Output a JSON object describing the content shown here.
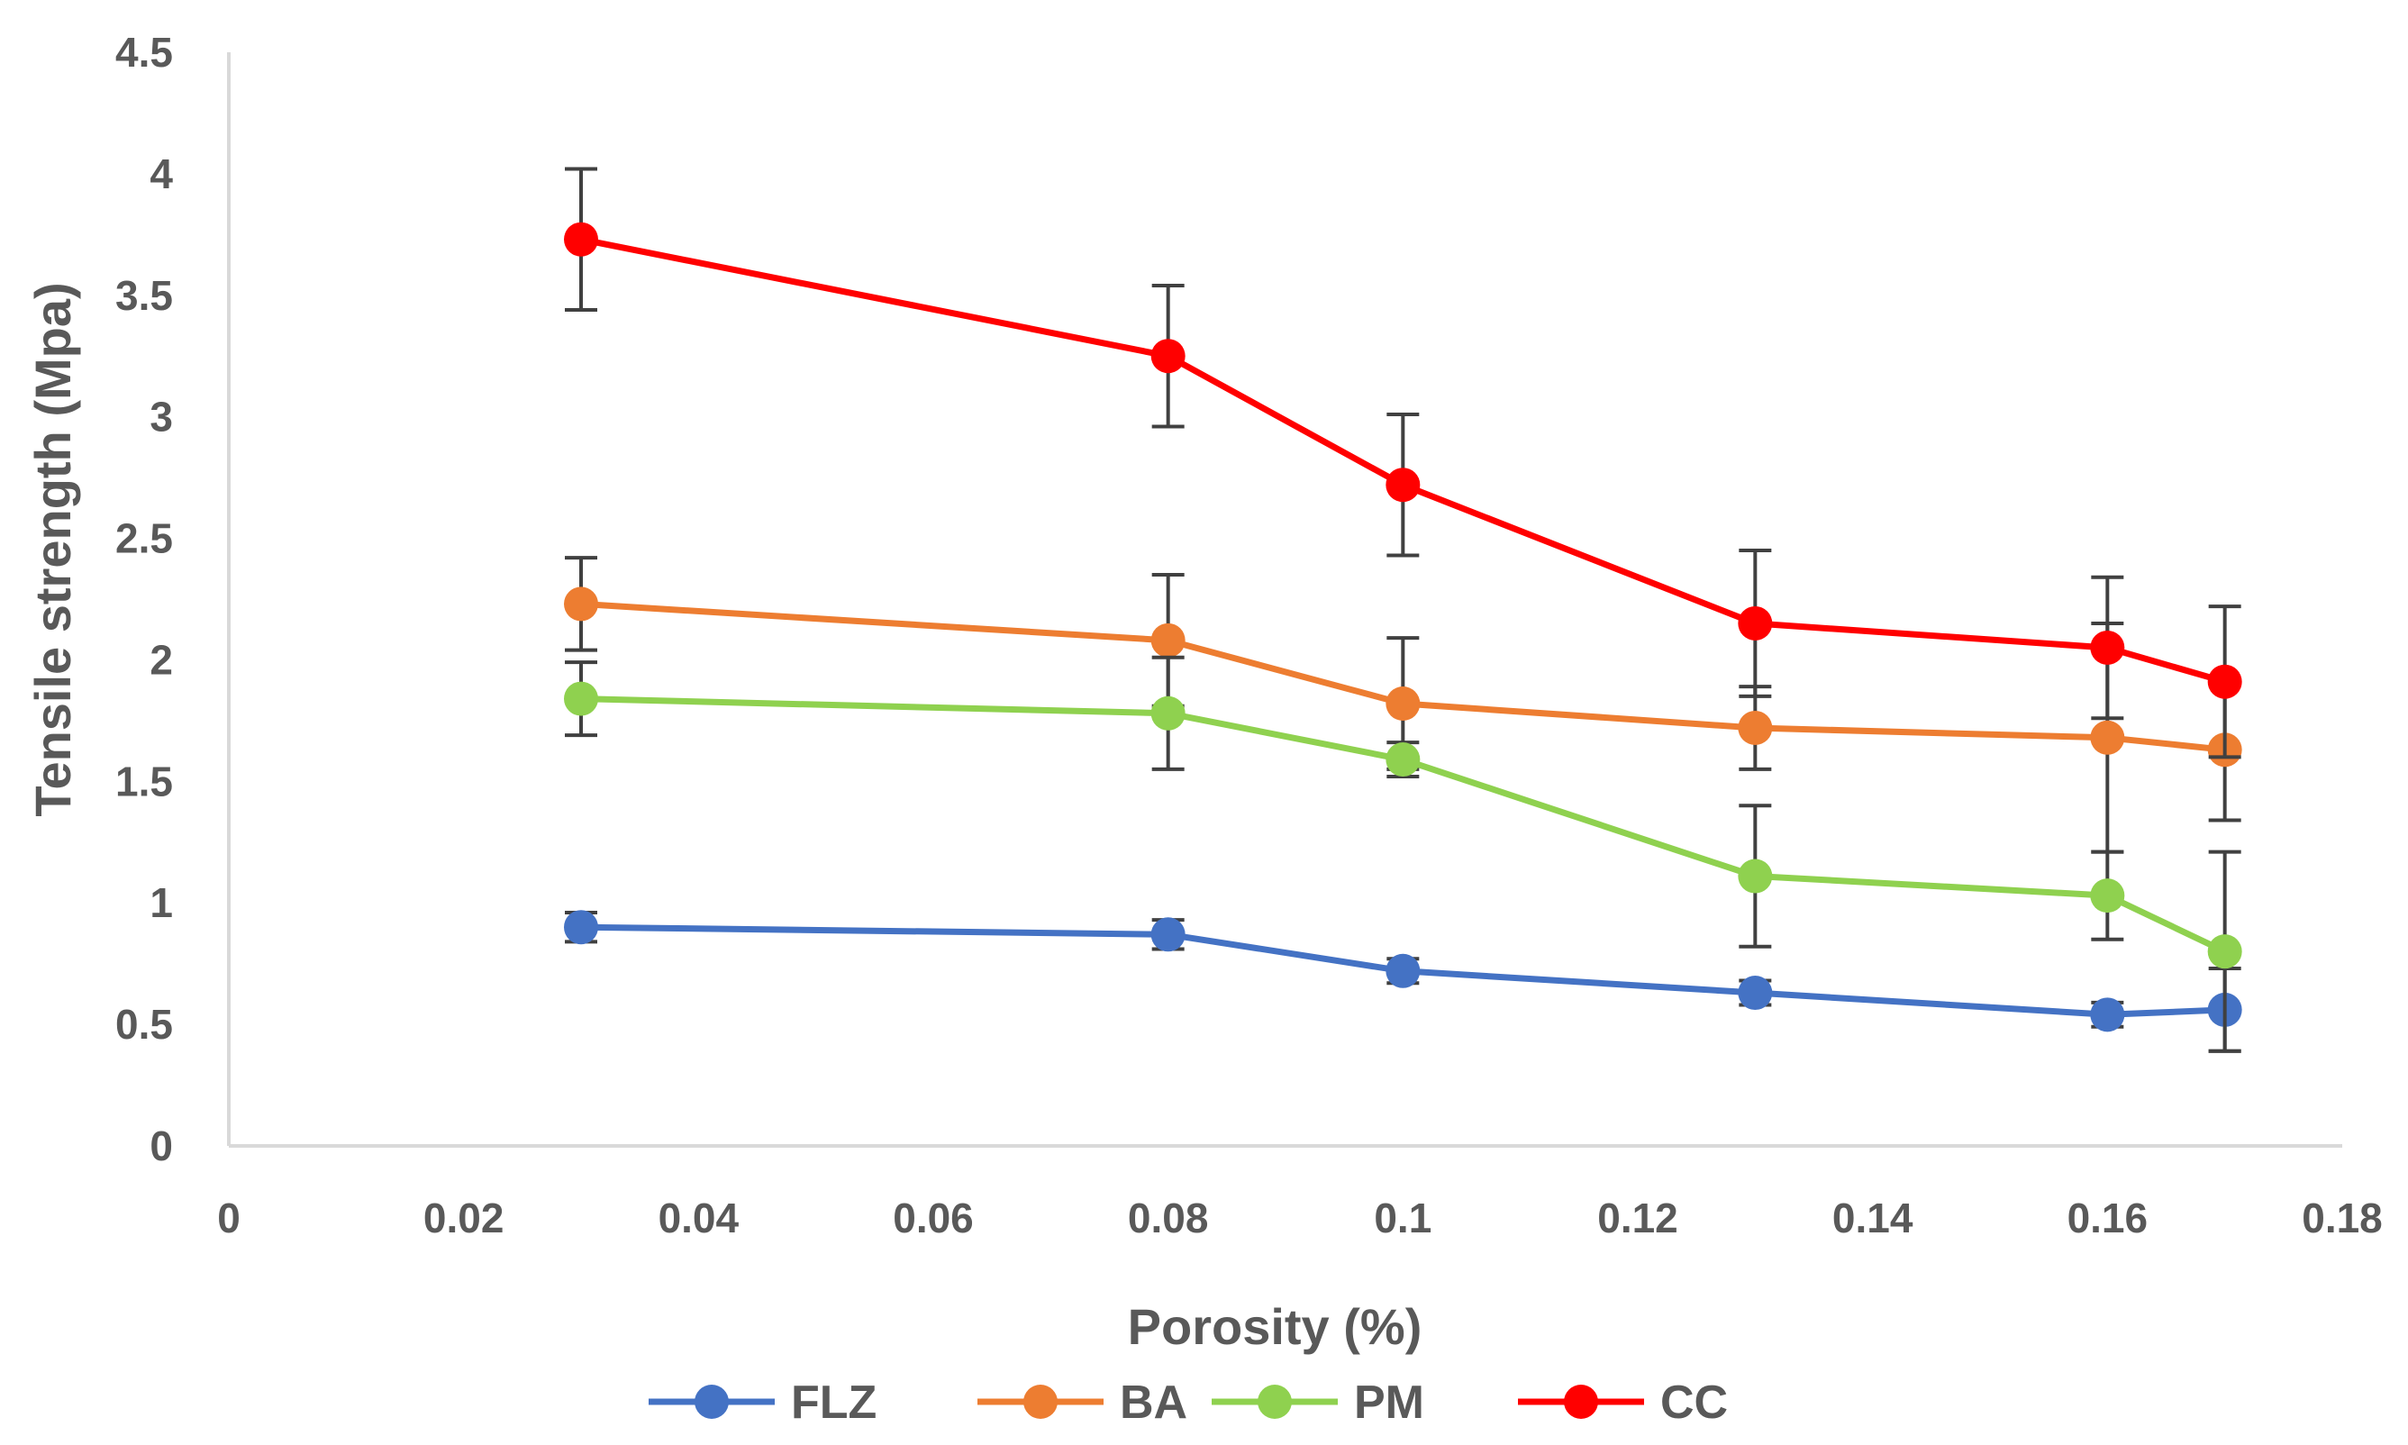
{
  "chart_data": {
    "type": "line",
    "title": "",
    "xlabel": "Porosity (%)",
    "ylabel": "Tensile strength (Mpa)",
    "xlim": [
      0,
      0.18
    ],
    "ylim": [
      0,
      4.5
    ],
    "x_ticks": [
      0,
      0.02,
      0.04,
      0.06,
      0.08,
      0.1,
      0.12,
      0.14,
      0.16,
      0.18
    ],
    "x_tick_labels": [
      "0",
      "0.02",
      "0.04",
      "0.06",
      "0.08",
      "0.1",
      "0.12",
      "0.14",
      "0.16",
      "0.18"
    ],
    "y_ticks": [
      0,
      0.5,
      1,
      1.5,
      2,
      2.5,
      3,
      3.5,
      4,
      4.5
    ],
    "y_tick_labels": [
      "0",
      "0.5",
      "1",
      "1.5",
      "2",
      "2.5",
      "3",
      "3.5",
      "4",
      "4.5"
    ],
    "grid": false,
    "legend_position": "bottom",
    "x": [
      0.03,
      0.08,
      0.1,
      0.13,
      0.16,
      0.17
    ],
    "series": [
      {
        "name": "FLZ",
        "color": "#4472C4",
        "values": [
          0.9,
          0.87,
          0.72,
          0.63,
          0.54,
          0.56
        ],
        "errors": [
          0.06,
          0.06,
          0.05,
          0.05,
          0.05,
          0.17
        ]
      },
      {
        "name": "BA",
        "color": "#ED7D31",
        "values": [
          2.23,
          2.08,
          1.82,
          1.72,
          1.68,
          1.63
        ],
        "errors": [
          0.19,
          0.27,
          0.27,
          0.17,
          0.47,
          0.29
        ]
      },
      {
        "name": "PM",
        "color": "#8FD14F",
        "values": [
          1.84,
          1.78,
          1.59,
          1.11,
          1.03,
          0.8
        ],
        "errors": [
          0.15,
          0.23,
          0.07,
          0.29,
          0.18,
          0.41
        ]
      },
      {
        "name": "CC",
        "color": "#FF0000",
        "values": [
          3.73,
          3.25,
          2.72,
          2.15,
          2.05,
          1.91
        ],
        "errors": [
          0.29,
          0.29,
          0.29,
          0.3,
          0.29,
          0.31
        ]
      }
    ]
  }
}
